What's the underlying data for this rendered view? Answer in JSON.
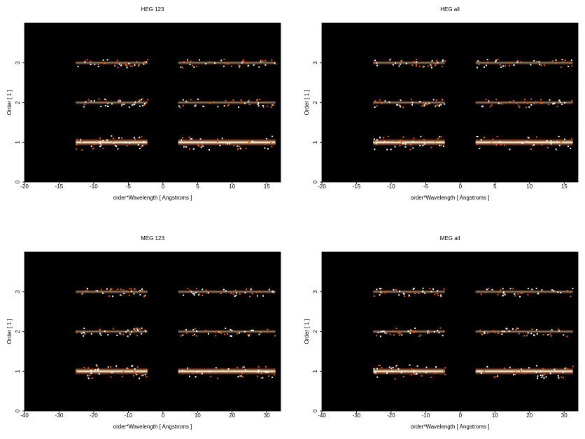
{
  "chart_data": [
    {
      "type": "image",
      "title": "HEG 123",
      "xlabel": "order*Wavelength [ Angstroms ]",
      "ylabel": "Order [ 1 ]",
      "xlim": [
        -20,
        17
      ],
      "ylim": [
        0,
        4
      ],
      "xticks": [
        -20,
        -15,
        -10,
        -5,
        0,
        5,
        10,
        15
      ],
      "yticks": [
        0,
        1,
        2,
        3
      ]
    },
    {
      "type": "image",
      "title": "HEG all",
      "xlabel": "order*Wavelength [ Angstroms ]",
      "ylabel": "Order [ 1 ]",
      "xlim": [
        -20,
        17
      ],
      "ylim": [
        0,
        4
      ],
      "xticks": [
        -20,
        -15,
        -10,
        -5,
        0,
        5,
        10,
        15
      ],
      "yticks": [
        0,
        1,
        2,
        3
      ]
    },
    {
      "type": "image",
      "title": "MEG 123",
      "xlabel": "order*Wavelength [ Angstroms ]",
      "ylabel": "Order [ 1 ]",
      "xlim": [
        -40,
        34
      ],
      "ylim": [
        0,
        4
      ],
      "xticks": [
        -40,
        -30,
        -20,
        -10,
        0,
        10,
        20,
        30
      ],
      "yticks": [
        0,
        1,
        2,
        3
      ]
    },
    {
      "type": "image",
      "title": "MEG all",
      "xlabel": "order*Wavelength [ Angstroms ]",
      "ylabel": "Order [ 1 ]",
      "xlim": [
        -40,
        34
      ],
      "ylim": [
        0,
        4
      ],
      "xticks": [
        -40,
        -30,
        -20,
        -10,
        0,
        10,
        20,
        30
      ],
      "yticks": [
        0,
        1,
        2,
        3
      ]
    }
  ]
}
